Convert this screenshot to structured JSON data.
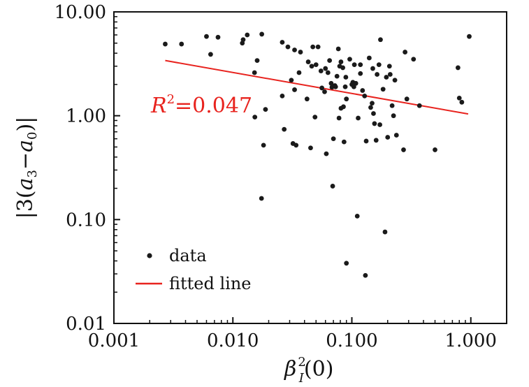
{
  "chart_data": {
    "type": "scatter",
    "xscale": "log",
    "yscale": "log",
    "xlim": [
      0.001,
      2.0
    ],
    "ylim": [
      0.01,
      10.0
    ],
    "x_ticks": [
      0.001,
      0.01,
      0.1,
      1.0
    ],
    "x_tick_labels": [
      "0.001",
      "0.010",
      "0.100",
      "1.000"
    ],
    "y_ticks": [
      0.01,
      0.1,
      1.0,
      10.0
    ],
    "y_tick_labels": [
      "0.01",
      "0.10",
      "1.00",
      "10.00"
    ],
    "xlabel": {
      "base": "β",
      "sup": "2",
      "sub": "I",
      "tail": "(0)"
    },
    "ylabel": {
      "pre": "|3(",
      "a": "a",
      "sub1": "3",
      "minus": "−",
      "sub2": "0",
      "post": ")|"
    },
    "annotation": {
      "name": "R",
      "sup": "2",
      "value": "=0.047",
      "color": "#e8231e"
    },
    "legend": [
      {
        "label": "data",
        "kind": "marker"
      },
      {
        "label": "fitted line",
        "kind": "line",
        "color": "#e8231e"
      }
    ],
    "fit": {
      "x": [
        0.0027,
        0.95
      ],
      "y": [
        3.4,
        1.04
      ]
    },
    "series": [
      {
        "name": "data",
        "points": [
          [
            0.0027,
            4.9
          ],
          [
            0.0037,
            4.9
          ],
          [
            0.006,
            5.8
          ],
          [
            0.0075,
            5.7
          ],
          [
            0.0065,
            3.9
          ],
          [
            0.012,
            5.0
          ],
          [
            0.0132,
            6.0
          ],
          [
            0.0175,
            6.1
          ],
          [
            0.0122,
            5.4
          ],
          [
            0.016,
            3.4
          ],
          [
            0.0152,
            2.6
          ],
          [
            0.0188,
            1.15
          ],
          [
            0.0153,
            0.97
          ],
          [
            0.0181,
            0.52
          ],
          [
            0.0174,
            0.16
          ],
          [
            0.026,
            5.1
          ],
          [
            0.029,
            4.6
          ],
          [
            0.033,
            4.3
          ],
          [
            0.037,
            4.1
          ],
          [
            0.031,
            2.2
          ],
          [
            0.036,
            2.6
          ],
          [
            0.026,
            1.55
          ],
          [
            0.033,
            1.78
          ],
          [
            0.027,
            0.74
          ],
          [
            0.032,
            0.54
          ],
          [
            0.034,
            0.52
          ],
          [
            0.047,
            4.6
          ],
          [
            0.052,
            4.6
          ],
          [
            0.043,
            3.3
          ],
          [
            0.046,
            3.0
          ],
          [
            0.05,
            3.1
          ],
          [
            0.055,
            2.7
          ],
          [
            0.059,
            1.7
          ],
          [
            0.056,
            1.85
          ],
          [
            0.042,
            1.45
          ],
          [
            0.049,
            0.97
          ],
          [
            0.045,
            0.49
          ],
          [
            0.061,
            0.43
          ],
          [
            0.063,
            2.6
          ],
          [
            0.067,
            2.05
          ],
          [
            0.072,
            1.95
          ],
          [
            0.075,
            2.4
          ],
          [
            0.079,
            3.0
          ],
          [
            0.084,
            2.9
          ],
          [
            0.077,
            4.4
          ],
          [
            0.081,
            3.3
          ],
          [
            0.068,
            1.88
          ],
          [
            0.073,
            1.9
          ],
          [
            0.089,
            2.35
          ],
          [
            0.085,
            1.22
          ],
          [
            0.081,
            1.18
          ],
          [
            0.09,
            1.45
          ],
          [
            0.078,
            0.95
          ],
          [
            0.07,
            0.6
          ],
          [
            0.086,
            0.56
          ],
          [
            0.069,
            0.21
          ],
          [
            0.096,
            3.5
          ],
          [
            0.105,
            3.1
          ],
          [
            0.102,
            2.1
          ],
          [
            0.108,
            2.05
          ],
          [
            0.104,
            1.9
          ],
          [
            0.113,
            0.95
          ],
          [
            0.111,
            0.108
          ],
          [
            0.09,
            0.038
          ],
          [
            0.13,
            0.029
          ],
          [
            0.118,
            3.1
          ],
          [
            0.128,
            1.55
          ],
          [
            0.132,
            0.57
          ],
          [
            0.14,
            3.6
          ],
          [
            0.15,
            2.85
          ],
          [
            0.144,
            1.2
          ],
          [
            0.152,
            1.05
          ],
          [
            0.155,
            0.84
          ],
          [
            0.148,
            1.32
          ],
          [
            0.163,
            2.5
          ],
          [
            0.169,
            3.1
          ],
          [
            0.174,
            5.4
          ],
          [
            0.183,
            1.8
          ],
          [
            0.172,
            0.82
          ],
          [
            0.16,
            0.58
          ],
          [
            0.19,
            0.076
          ],
          [
            0.195,
            2.35
          ],
          [
            0.207,
            3.0
          ],
          [
            0.21,
            2.5
          ],
          [
            0.218,
            1.25
          ],
          [
            0.224,
            1.0
          ],
          [
            0.2,
            0.62
          ],
          [
            0.237,
            0.65
          ],
          [
            0.272,
            0.47
          ],
          [
            0.29,
            1.45
          ],
          [
            0.33,
            3.5
          ],
          [
            0.28,
            4.1
          ],
          [
            0.37,
            1.25
          ],
          [
            0.5,
            0.47
          ],
          [
            0.78,
            2.9
          ],
          [
            0.8,
            1.48
          ],
          [
            0.84,
            1.35
          ],
          [
            0.97,
            5.8
          ],
          [
            0.088,
            1.9
          ],
          [
            0.118,
            2.55
          ],
          [
            0.06,
            2.85
          ],
          [
            0.1,
            2.0
          ],
          [
            0.123,
            1.75
          ],
          [
            0.23,
            2.2
          ],
          [
            0.065,
            3.4
          ]
        ]
      }
    ]
  }
}
